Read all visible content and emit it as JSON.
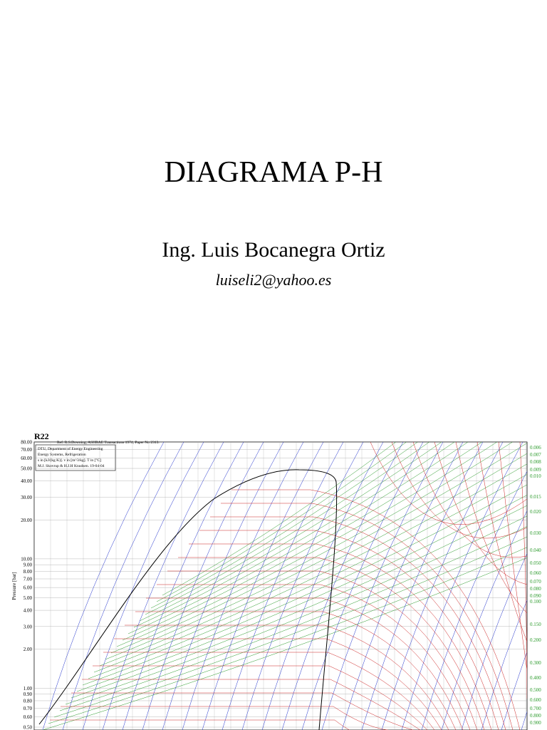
{
  "slide": {
    "title": "DIAGRAMA P-H",
    "author": "Ing. Luis Bocanegra Ortiz",
    "email": "luiseli2@yahoo.es"
  },
  "chart_data": {
    "type": "line",
    "title": "R22",
    "reference": "Ref. R.S.Downing, ASHRAE Transactions 1974, Paper No 2313.",
    "info_lines": [
      "DTU, Department of Energy Engineering",
      "Energy Systems, Refrigeration",
      "s in [kJ/(kg K)]. v in [m^3/kg]. T in [°C]",
      "M.J. Skovrup & H.J.H Knudsen. 19-04-04"
    ],
    "y_label": "Pressure [bar]",
    "log_y": true,
    "ylim": [
      0.5,
      80
    ],
    "yticks": [
      {
        "value": 80,
        "label": "80.00"
      },
      {
        "value": 70,
        "label": "70.00"
      },
      {
        "value": 60,
        "label": "60.00"
      },
      {
        "value": 50,
        "label": "50.00"
      },
      {
        "value": 40,
        "label": "40.00"
      },
      {
        "value": 30,
        "label": "30.00"
      },
      {
        "value": 20,
        "label": "20.00"
      },
      {
        "value": 10,
        "label": "10.00"
      },
      {
        "value": 9,
        "label": "9.00"
      },
      {
        "value": 8,
        "label": "8.00"
      },
      {
        "value": 7,
        "label": "7.00"
      },
      {
        "value": 6,
        "label": "6.00"
      },
      {
        "value": 5,
        "label": "5.00"
      },
      {
        "value": 4,
        "label": "4.00"
      },
      {
        "value": 3,
        "label": "3.00"
      },
      {
        "value": 2,
        "label": "2.00"
      },
      {
        "value": 1,
        "label": "1.00"
      },
      {
        "value": 0.9,
        "label": "0.90"
      },
      {
        "value": 0.8,
        "label": "0.80"
      },
      {
        "value": 0.7,
        "label": "0.70"
      },
      {
        "value": 0.6,
        "label": "0.60"
      },
      {
        "value": 0.5,
        "label": "0.50"
      }
    ],
    "volume_labels": [
      "0.006",
      "0.007",
      "0.008",
      "0.009",
      "0.010",
      "0.015",
      "0.020",
      "0.030",
      "0.040",
      "0.050",
      "0.060",
      "0.070",
      "0.080",
      "0.090",
      "0.100",
      "0.150",
      "0.200",
      "0.300",
      "0.400",
      "0.500",
      "0.600",
      "0.700",
      "0.800",
      "0.900"
    ]
  }
}
